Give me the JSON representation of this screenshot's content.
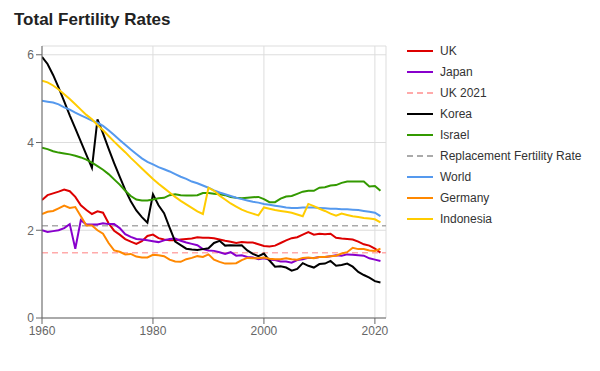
{
  "chart_data": {
    "type": "line",
    "title": "Total Fertility Rates",
    "x": [
      1960,
      1961,
      1962,
      1963,
      1964,
      1965,
      1966,
      1967,
      1968,
      1969,
      1970,
      1971,
      1972,
      1973,
      1974,
      1975,
      1976,
      1977,
      1978,
      1979,
      1980,
      1981,
      1982,
      1983,
      1984,
      1985,
      1986,
      1987,
      1988,
      1989,
      1990,
      1991,
      1992,
      1993,
      1994,
      1995,
      1996,
      1997,
      1998,
      1999,
      2000,
      2001,
      2002,
      2003,
      2004,
      2005,
      2006,
      2007,
      2008,
      2009,
      2010,
      2011,
      2012,
      2013,
      2014,
      2015,
      2016,
      2017,
      2018,
      2019,
      2020,
      2021
    ],
    "xlim": [
      1960,
      2022
    ],
    "xticks": [
      1960,
      1980,
      2000,
      2020
    ],
    "ylim": [
      0,
      6.2
    ],
    "yticks": [
      0,
      2,
      4,
      6
    ],
    "grid": true,
    "legend": "right",
    "series": [
      {
        "name": "UK",
        "color": "#dd0000",
        "values": [
          2.69,
          2.8,
          2.84,
          2.88,
          2.93,
          2.89,
          2.76,
          2.57,
          2.46,
          2.37,
          2.43,
          2.4,
          2.16,
          1.99,
          1.9,
          1.8,
          1.74,
          1.69,
          1.75,
          1.87,
          1.9,
          1.82,
          1.79,
          1.77,
          1.77,
          1.79,
          1.8,
          1.81,
          1.84,
          1.83,
          1.83,
          1.82,
          1.79,
          1.76,
          1.74,
          1.71,
          1.73,
          1.72,
          1.72,
          1.68,
          1.64,
          1.63,
          1.65,
          1.71,
          1.77,
          1.82,
          1.84,
          1.9,
          1.96,
          1.9,
          1.92,
          1.91,
          1.92,
          1.83,
          1.81,
          1.8,
          1.79,
          1.74,
          1.68,
          1.65,
          1.58,
          1.49
        ]
      },
      {
        "name": "Japan",
        "color": "#8800cc",
        "values": [
          2.0,
          1.96,
          1.98,
          2.0,
          2.05,
          2.14,
          1.58,
          2.23,
          2.13,
          2.13,
          2.13,
          2.16,
          2.14,
          2.14,
          2.05,
          1.91,
          1.85,
          1.8,
          1.79,
          1.77,
          1.75,
          1.73,
          1.77,
          1.8,
          1.81,
          1.76,
          1.72,
          1.69,
          1.66,
          1.57,
          1.54,
          1.53,
          1.5,
          1.46,
          1.5,
          1.42,
          1.43,
          1.39,
          1.38,
          1.34,
          1.36,
          1.33,
          1.32,
          1.29,
          1.29,
          1.26,
          1.32,
          1.34,
          1.37,
          1.37,
          1.39,
          1.39,
          1.41,
          1.43,
          1.42,
          1.45,
          1.44,
          1.43,
          1.42,
          1.36,
          1.33,
          1.3
        ]
      },
      {
        "name": "UK 2021",
        "type": "hline",
        "value": 1.49,
        "color": "#ffaaaa",
        "line_style": "dashed"
      },
      {
        "name": "Korea",
        "color": "#000000",
        "values": [
          5.95,
          5.79,
          5.54,
          5.25,
          4.94,
          4.62,
          4.32,
          4.02,
          3.72,
          3.42,
          4.53,
          4.21,
          3.86,
          3.53,
          3.22,
          2.92,
          2.66,
          2.45,
          2.3,
          2.17,
          2.82,
          2.57,
          2.39,
          2.06,
          1.74,
          1.66,
          1.58,
          1.56,
          1.55,
          1.57,
          1.59,
          1.71,
          1.76,
          1.65,
          1.66,
          1.65,
          1.66,
          1.54,
          1.46,
          1.41,
          1.47,
          1.31,
          1.17,
          1.18,
          1.15,
          1.08,
          1.12,
          1.25,
          1.19,
          1.15,
          1.23,
          1.24,
          1.3,
          1.19,
          1.21,
          1.24,
          1.17,
          1.05,
          0.98,
          0.92,
          0.84,
          0.81
        ]
      },
      {
        "name": "Israel",
        "color": "#339900",
        "values": [
          3.88,
          3.85,
          3.8,
          3.77,
          3.75,
          3.73,
          3.7,
          3.66,
          3.61,
          3.54,
          3.46,
          3.38,
          3.28,
          3.16,
          3.04,
          2.9,
          2.78,
          2.7,
          2.68,
          2.68,
          2.7,
          2.73,
          2.74,
          2.8,
          2.82,
          2.8,
          2.79,
          2.79,
          2.8,
          2.85,
          2.85,
          2.83,
          2.82,
          2.8,
          2.76,
          2.74,
          2.73,
          2.74,
          2.75,
          2.76,
          2.71,
          2.64,
          2.64,
          2.72,
          2.77,
          2.78,
          2.83,
          2.88,
          2.9,
          2.9,
          2.97,
          2.98,
          3.02,
          3.03,
          3.08,
          3.11,
          3.11,
          3.11,
          3.11,
          3.0,
          3.01,
          2.9
        ]
      },
      {
        "name": "Replacement Fertility Rate",
        "type": "hline",
        "value": 2.1,
        "color": "#aaaaaa",
        "line_style": "dashed"
      },
      {
        "name": "World",
        "color": "#5599ee",
        "values": [
          4.95,
          4.93,
          4.91,
          4.87,
          4.8,
          4.75,
          4.68,
          4.62,
          4.56,
          4.5,
          4.45,
          4.38,
          4.28,
          4.17,
          4.06,
          3.95,
          3.84,
          3.74,
          3.64,
          3.56,
          3.5,
          3.44,
          3.39,
          3.34,
          3.28,
          3.22,
          3.17,
          3.11,
          3.07,
          3.02,
          2.97,
          2.91,
          2.86,
          2.82,
          2.78,
          2.74,
          2.71,
          2.68,
          2.65,
          2.63,
          2.6,
          2.58,
          2.56,
          2.54,
          2.52,
          2.51,
          2.51,
          2.52,
          2.52,
          2.52,
          2.51,
          2.5,
          2.49,
          2.49,
          2.48,
          2.48,
          2.47,
          2.46,
          2.44,
          2.42,
          2.4,
          2.32
        ]
      },
      {
        "name": "Germany",
        "color": "#ff8800",
        "values": [
          2.37,
          2.42,
          2.44,
          2.5,
          2.56,
          2.51,
          2.53,
          2.32,
          2.11,
          2.11,
          2.0,
          1.92,
          1.71,
          1.54,
          1.51,
          1.45,
          1.46,
          1.4,
          1.38,
          1.38,
          1.44,
          1.43,
          1.41,
          1.33,
          1.29,
          1.28,
          1.34,
          1.37,
          1.41,
          1.39,
          1.45,
          1.33,
          1.28,
          1.24,
          1.24,
          1.25,
          1.32,
          1.37,
          1.36,
          1.36,
          1.38,
          1.35,
          1.34,
          1.34,
          1.36,
          1.34,
          1.33,
          1.37,
          1.38,
          1.36,
          1.39,
          1.39,
          1.41,
          1.42,
          1.47,
          1.5,
          1.6,
          1.57,
          1.57,
          1.54,
          1.53,
          1.58
        ]
      },
      {
        "name": "Indonesia",
        "color": "#ffcc00",
        "values": [
          5.41,
          5.37,
          5.3,
          5.21,
          5.1,
          4.99,
          4.87,
          4.75,
          4.63,
          4.53,
          4.4,
          4.28,
          4.15,
          4.02,
          3.9,
          3.78,
          3.65,
          3.53,
          3.41,
          3.29,
          3.17,
          3.06,
          2.96,
          2.86,
          2.76,
          2.67,
          2.59,
          2.51,
          2.43,
          2.37,
          2.97,
          2.9,
          2.79,
          2.7,
          2.61,
          2.54,
          2.47,
          2.42,
          2.38,
          2.34,
          2.52,
          2.49,
          2.46,
          2.44,
          2.42,
          2.4,
          2.36,
          2.32,
          2.6,
          2.55,
          2.49,
          2.44,
          2.38,
          2.33,
          2.38,
          2.35,
          2.32,
          2.3,
          2.28,
          2.27,
          2.25,
          2.18
        ]
      }
    ]
  }
}
